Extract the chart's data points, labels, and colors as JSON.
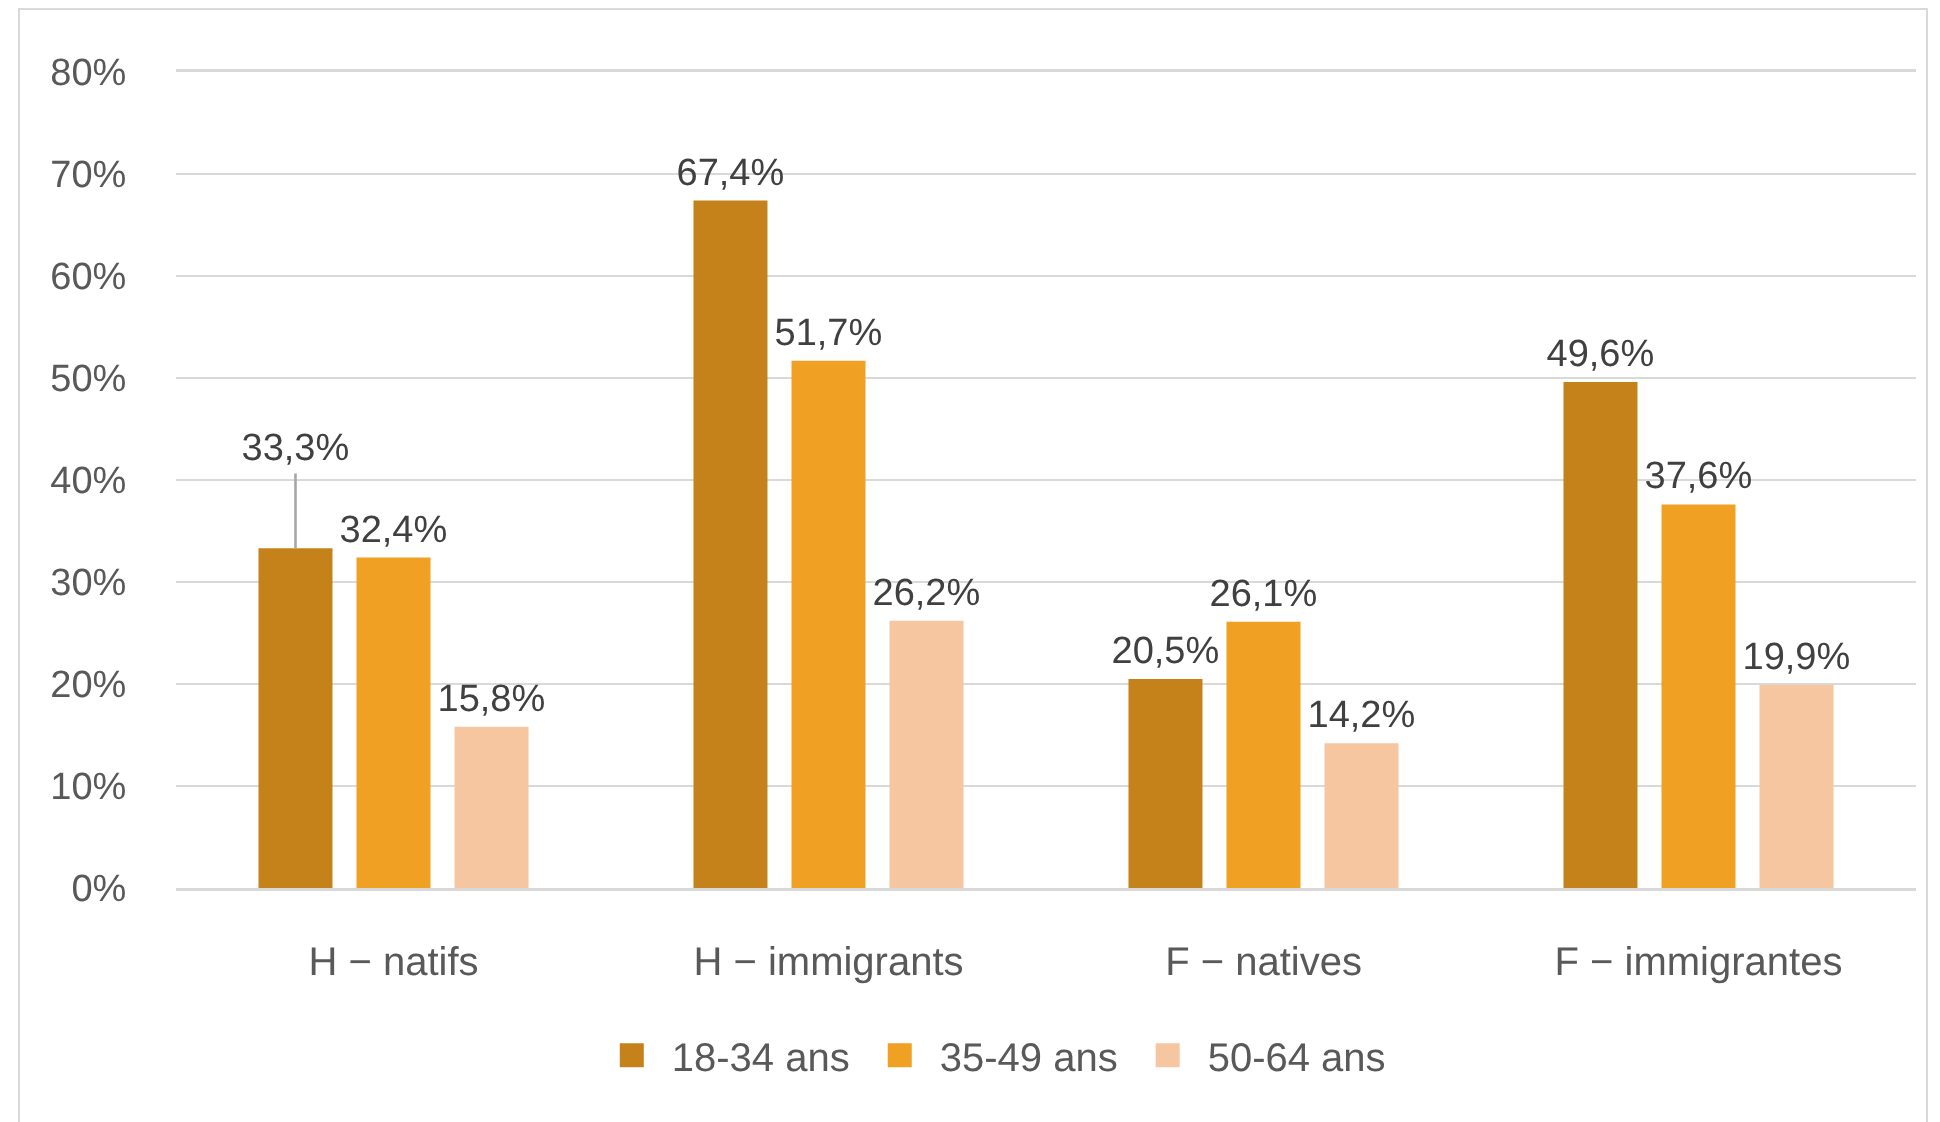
{
  "chart_data": {
    "type": "bar",
    "categories": [
      "H − natifs",
      "H − immigrants",
      "F − natives",
      "F − immigrantes"
    ],
    "series": [
      {
        "name": "18-34 ans",
        "color": "#c5821b",
        "values": [
          33.3,
          67.4,
          20.5,
          49.6
        ],
        "value_labels": [
          "33,3%",
          "67,4%",
          "20,5%",
          "49,6%"
        ]
      },
      {
        "name": "35-49 ans",
        "color": "#f0a022",
        "values": [
          32.4,
          51.7,
          26.1,
          37.6
        ],
        "value_labels": [
          "32,4%",
          "51,7%",
          "26,1%",
          "37,6%"
        ]
      },
      {
        "name": "50-64 ans",
        "color": "#f6c6a0",
        "values": [
          15.8,
          26.2,
          14.2,
          19.9
        ],
        "value_labels": [
          "15,8%",
          "26,2%",
          "14,2%",
          "19,9%"
        ]
      }
    ],
    "ylim": [
      0,
      80
    ],
    "yticks": [
      {
        "value": 0,
        "label": "0%"
      },
      {
        "value": 10,
        "label": "10%"
      },
      {
        "value": 20,
        "label": "20%"
      },
      {
        "value": 30,
        "label": "30%"
      },
      {
        "value": 40,
        "label": "40%"
      },
      {
        "value": 50,
        "label": "50%"
      },
      {
        "value": 60,
        "label": "60%"
      },
      {
        "value": 70,
        "label": "70%"
      },
      {
        "value": 80,
        "label": "80%"
      }
    ],
    "grid": "y",
    "legend": "bottom"
  }
}
